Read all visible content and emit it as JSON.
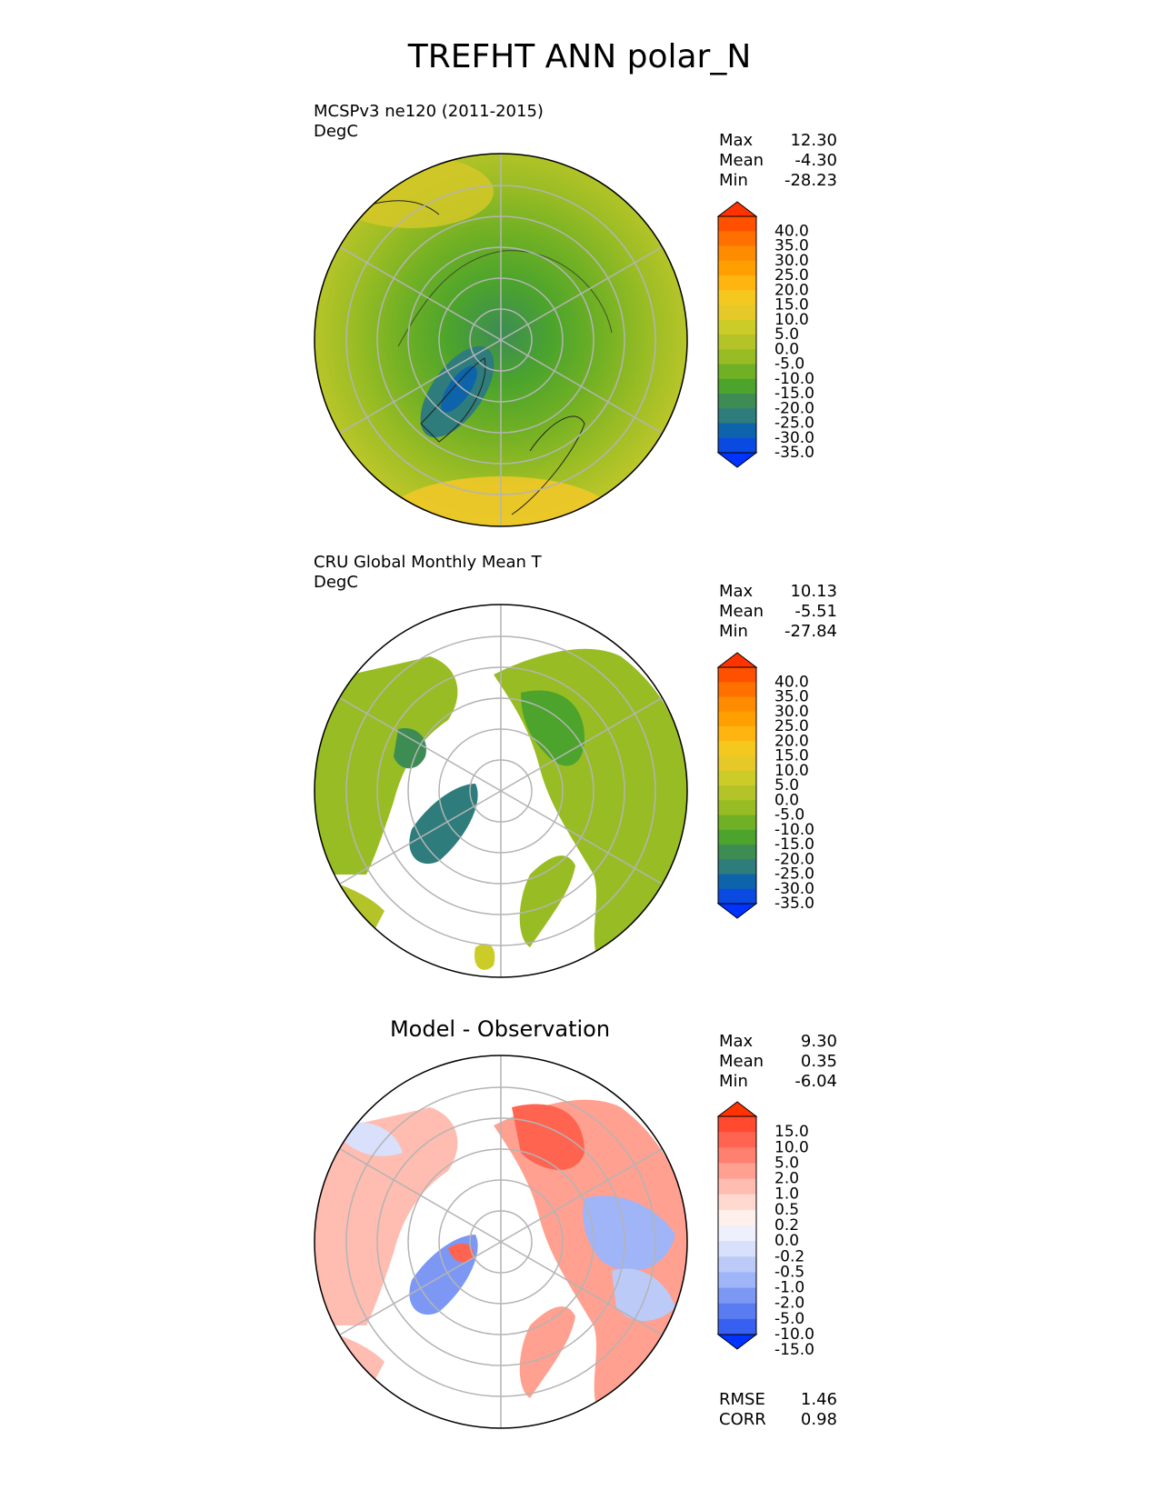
{
  "title": "TREFHT ANN polar_N",
  "panels": [
    {
      "line1": "MCSPv3 ne120 (2011-2015)",
      "line2": "DegC",
      "stats": [
        {
          "label": "Max",
          "value": "12.30"
        },
        {
          "label": "Mean",
          "value": "-4.30"
        },
        {
          "label": "Min",
          "value": "-28.23"
        }
      ]
    },
    {
      "line1": "CRU Global Monthly Mean T",
      "line2": "DegC",
      "stats": [
        {
          "label": "Max",
          "value": "10.13"
        },
        {
          "label": "Mean",
          "value": "-5.51"
        },
        {
          "label": "Min",
          "value": "-27.84"
        }
      ]
    },
    {
      "title": "Model - Observation",
      "stats": [
        {
          "label": "Max",
          "value": "9.30"
        },
        {
          "label": "Mean",
          "value": "0.35"
        },
        {
          "label": "Min",
          "value": "-6.04"
        }
      ],
      "metrics": [
        {
          "label": "RMSE",
          "value": "1.46"
        },
        {
          "label": "CORR",
          "value": "0.98"
        }
      ]
    }
  ],
  "colorbar_temp": {
    "labels": [
      "40.0",
      "35.0",
      "30.0",
      "25.0",
      "20.0",
      "15.0",
      "10.0",
      "5.0",
      "0.0",
      "-5.0",
      "-10.0",
      "-15.0",
      "-20.0",
      "-25.0",
      "-30.0",
      "-35.0"
    ],
    "colors": [
      "#ff3300",
      "#ff5000",
      "#ff7000",
      "#ff8c00",
      "#ffa000",
      "#ffb410",
      "#f5c820",
      "#e6c828",
      "#cccc28",
      "#b4c428",
      "#98bc24",
      "#70b024",
      "#4ca42c",
      "#3c8c54",
      "#2e7c7c",
      "#0e64aa",
      "#0a4ae0",
      "#0033ff"
    ]
  },
  "colorbar_diff": {
    "labels": [
      "15.0",
      "10.0",
      "5.0",
      "2.0",
      "1.0",
      "0.5",
      "0.2",
      "0.0",
      "-0.2",
      "-0.5",
      "-1.0",
      "-2.0",
      "-5.0",
      "-10.0",
      "-15.0"
    ],
    "colors": [
      "#ff3300",
      "#ff4a30",
      "#ff6450",
      "#ff8070",
      "#ffa090",
      "#ffbcb0",
      "#ffd8d0",
      "#fff0ec",
      "#eef0fc",
      "#d8e0fc",
      "#bccaf8",
      "#a0b4f8",
      "#7c98f4",
      "#5a7cf0",
      "#3860f0",
      "#0033ff"
    ]
  }
}
